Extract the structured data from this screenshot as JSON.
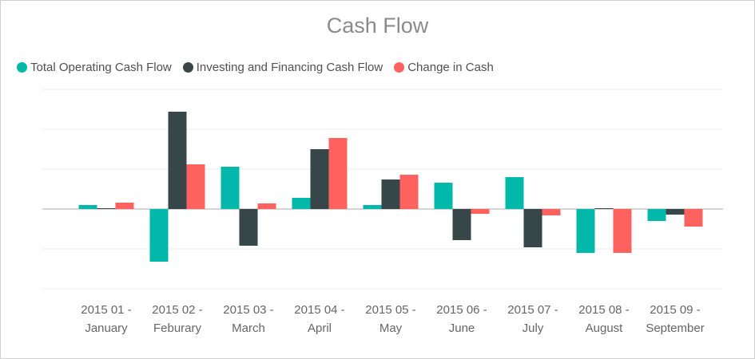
{
  "chart_data": {
    "type": "bar",
    "title": "Cash Flow",
    "categories": [
      [
        "2015 01 -",
        "January"
      ],
      [
        "2015 02 -",
        "Feburary"
      ],
      [
        "2015 03 -",
        "March"
      ],
      [
        "2015 04 -",
        "April"
      ],
      [
        "2015 05 -",
        "May"
      ],
      [
        "2015 06 -",
        "June"
      ],
      [
        "2015 07 -",
        "July"
      ],
      [
        "2015 08 -",
        "August"
      ],
      [
        "2015 09 -",
        "September"
      ]
    ],
    "series": [
      {
        "name": "Total Operating Cash Flow",
        "color": "#01B8AA",
        "values": [
          0.1,
          -1.32,
          1.06,
          0.28,
          0.1,
          0.66,
          0.8,
          -1.1,
          -0.3
        ]
      },
      {
        "name": "Investing and Financing Cash Flow",
        "color": "#374649",
        "values": [
          0.02,
          2.44,
          -0.92,
          1.5,
          0.74,
          -0.78,
          -0.96,
          0.02,
          -0.14
        ]
      },
      {
        "name": "Change in Cash",
        "color": "#FD625E",
        "values": [
          0.16,
          1.12,
          0.14,
          1.78,
          0.86,
          -0.12,
          -0.16,
          -1.1,
          -0.44
        ]
      }
    ],
    "ylim": [
      -2,
      3
    ],
    "gridlines": [
      -2,
      -1,
      0,
      1,
      2,
      3
    ],
    "grid": true,
    "y_axis_labels_shown": false,
    "legend": "top-left"
  }
}
